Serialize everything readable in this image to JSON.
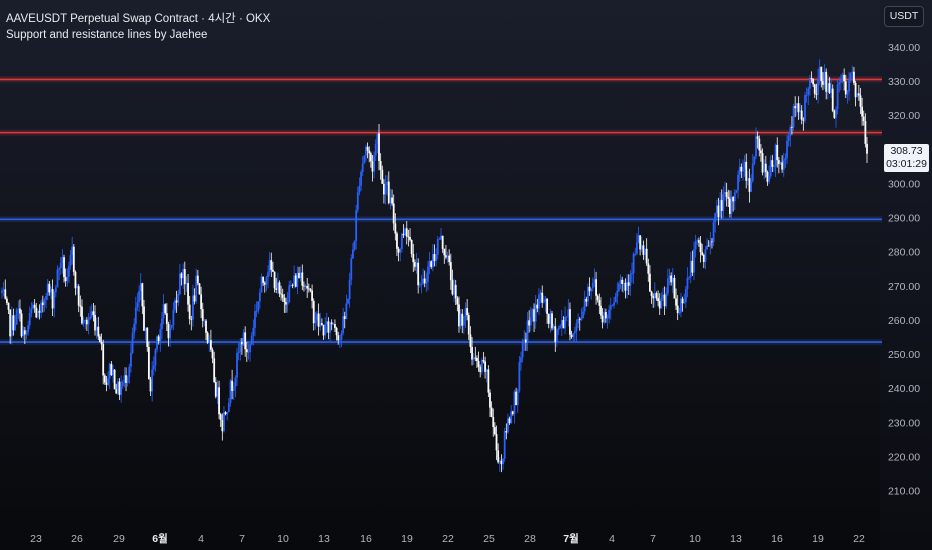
{
  "header": {
    "title": "AAVEUSDT Perpetual Swap Contract · 4시간 · OKX",
    "subtitle": "Support and resistance lines by Jaehee"
  },
  "currency": "USDT",
  "last_price": {
    "value": "308.73",
    "countdown": "03:01:29",
    "number": 308.73
  },
  "colors": {
    "up": "#2962ff",
    "down": "#ffffff",
    "resistance": "#e03a3e",
    "support": "#2f5fe0",
    "text": "#b2b5be"
  },
  "chart_data": {
    "type": "candlestick",
    "title": "AAVEUSDT Perpetual Swap Contract · 4시간 · OKX",
    "subtitle": "Support and resistance lines by Jaehee",
    "ylim": [
      204,
      343
    ],
    "y_ticks": [
      340,
      330,
      320,
      310,
      300,
      290,
      280,
      270,
      260,
      250,
      240,
      230,
      220,
      210
    ],
    "y_tick_labels": [
      "340.00",
      "330.00",
      "320.00",
      "310.00",
      "300.00",
      "290.00",
      "280.00",
      "270.00",
      "260.00",
      "250.00",
      "240.00",
      "230.00",
      "220.00",
      "210.00"
    ],
    "x_tick_labels": [
      "23",
      "26",
      "29",
      "6월",
      "4",
      "7",
      "10",
      "13",
      "16",
      "19",
      "22",
      "25",
      "28",
      "7월",
      "4",
      "7",
      "10",
      "13",
      "16",
      "19",
      "22"
    ],
    "horizontal_lines": [
      {
        "type": "resistance",
        "price": 330.5
      },
      {
        "type": "resistance",
        "price": 314.9
      },
      {
        "type": "support",
        "price": 289.5
      },
      {
        "type": "support",
        "price": 253.5
      }
    ],
    "close_path": [
      [
        0,
        268
      ],
      [
        5,
        258
      ],
      [
        10,
        262
      ],
      [
        14,
        254
      ],
      [
        19,
        264
      ],
      [
        23,
        260
      ],
      [
        27,
        270
      ],
      [
        31,
        266
      ],
      [
        36,
        278
      ],
      [
        40,
        270
      ],
      [
        43,
        280
      ],
      [
        46,
        268
      ],
      [
        50,
        258
      ],
      [
        55,
        262
      ],
      [
        60,
        256
      ],
      [
        63,
        242
      ],
      [
        67,
        246
      ],
      [
        71,
        239
      ],
      [
        75,
        242
      ],
      [
        79,
        250
      ],
      [
        82,
        262
      ],
      [
        85,
        268
      ],
      [
        88,
        255
      ],
      [
        91,
        240
      ],
      [
        95,
        255
      ],
      [
        99,
        262
      ],
      [
        103,
        256
      ],
      [
        107,
        268
      ],
      [
        111,
        276
      ],
      [
        115,
        260
      ],
      [
        119,
        270
      ],
      [
        123,
        262
      ],
      [
        127,
        252
      ],
      [
        131,
        240
      ],
      [
        135,
        230
      ],
      [
        139,
        238
      ],
      [
        143,
        245
      ],
      [
        147,
        255
      ],
      [
        151,
        250
      ],
      [
        155,
        262
      ],
      [
        159,
        270
      ],
      [
        163,
        276
      ],
      [
        167,
        272
      ],
      [
        171,
        265
      ],
      [
        175,
        268
      ],
      [
        179,
        271
      ],
      [
        183,
        274
      ],
      [
        187,
        270
      ],
      [
        191,
        262
      ],
      [
        195,
        258
      ],
      [
        199,
        257
      ],
      [
        203,
        260
      ],
      [
        207,
        255
      ],
      [
        210,
        260
      ],
      [
        213,
        272
      ],
      [
        216,
        285
      ],
      [
        219,
        302
      ],
      [
        223,
        311
      ],
      [
        227,
        305
      ],
      [
        230,
        314
      ],
      [
        233,
        300
      ],
      [
        236,
        298
      ],
      [
        239,
        292
      ],
      [
        243,
        280
      ],
      [
        247,
        288
      ],
      [
        251,
        282
      ],
      [
        254,
        275
      ],
      [
        257,
        268
      ],
      [
        260,
        274
      ],
      [
        264,
        278
      ],
      [
        268,
        284
      ],
      [
        272,
        280
      ],
      [
        276,
        270
      ],
      [
        280,
        260
      ],
      [
        284,
        262
      ],
      [
        288,
        250
      ],
      [
        292,
        245
      ],
      [
        296,
        246
      ],
      [
        300,
        232
      ],
      [
        303,
        222
      ],
      [
        306,
        218
      ],
      [
        309,
        228
      ],
      [
        312,
        234
      ],
      [
        315,
        238
      ],
      [
        318,
        248
      ],
      [
        322,
        258
      ],
      [
        326,
        262
      ],
      [
        330,
        267
      ],
      [
        334,
        262
      ],
      [
        338,
        256
      ],
      [
        342,
        258
      ],
      [
        346,
        262
      ],
      [
        350,
        255
      ],
      [
        354,
        260
      ],
      [
        358,
        268
      ],
      [
        362,
        272
      ],
      [
        366,
        264
      ],
      [
        370,
        260
      ],
      [
        374,
        266
      ],
      [
        378,
        272
      ],
      [
        382,
        270
      ],
      [
        386,
        276
      ],
      [
        390,
        283
      ],
      [
        394,
        278
      ],
      [
        398,
        266
      ],
      [
        402,
        264
      ],
      [
        406,
        267
      ],
      [
        410,
        272
      ],
      [
        414,
        262
      ],
      [
        418,
        268
      ],
      [
        422,
        275
      ],
      [
        426,
        282
      ],
      [
        430,
        278
      ],
      [
        434,
        284
      ],
      [
        438,
        291
      ],
      [
        442,
        296
      ],
      [
        446,
        292
      ],
      [
        450,
        300
      ],
      [
        454,
        306
      ],
      [
        458,
        300
      ],
      [
        462,
        312
      ],
      [
        466,
        306
      ],
      [
        470,
        302
      ],
      [
        474,
        310
      ],
      [
        478,
        304
      ],
      [
        482,
        315
      ],
      [
        486,
        322
      ],
      [
        490,
        318
      ],
      [
        494,
        330
      ],
      [
        498,
        326
      ],
      [
        502,
        333
      ],
      [
        506,
        328
      ],
      [
        510,
        322
      ],
      [
        514,
        330
      ],
      [
        518,
        326
      ],
      [
        521,
        332
      ],
      [
        524,
        325
      ],
      [
        527,
        320
      ],
      [
        530,
        308
      ]
    ]
  }
}
